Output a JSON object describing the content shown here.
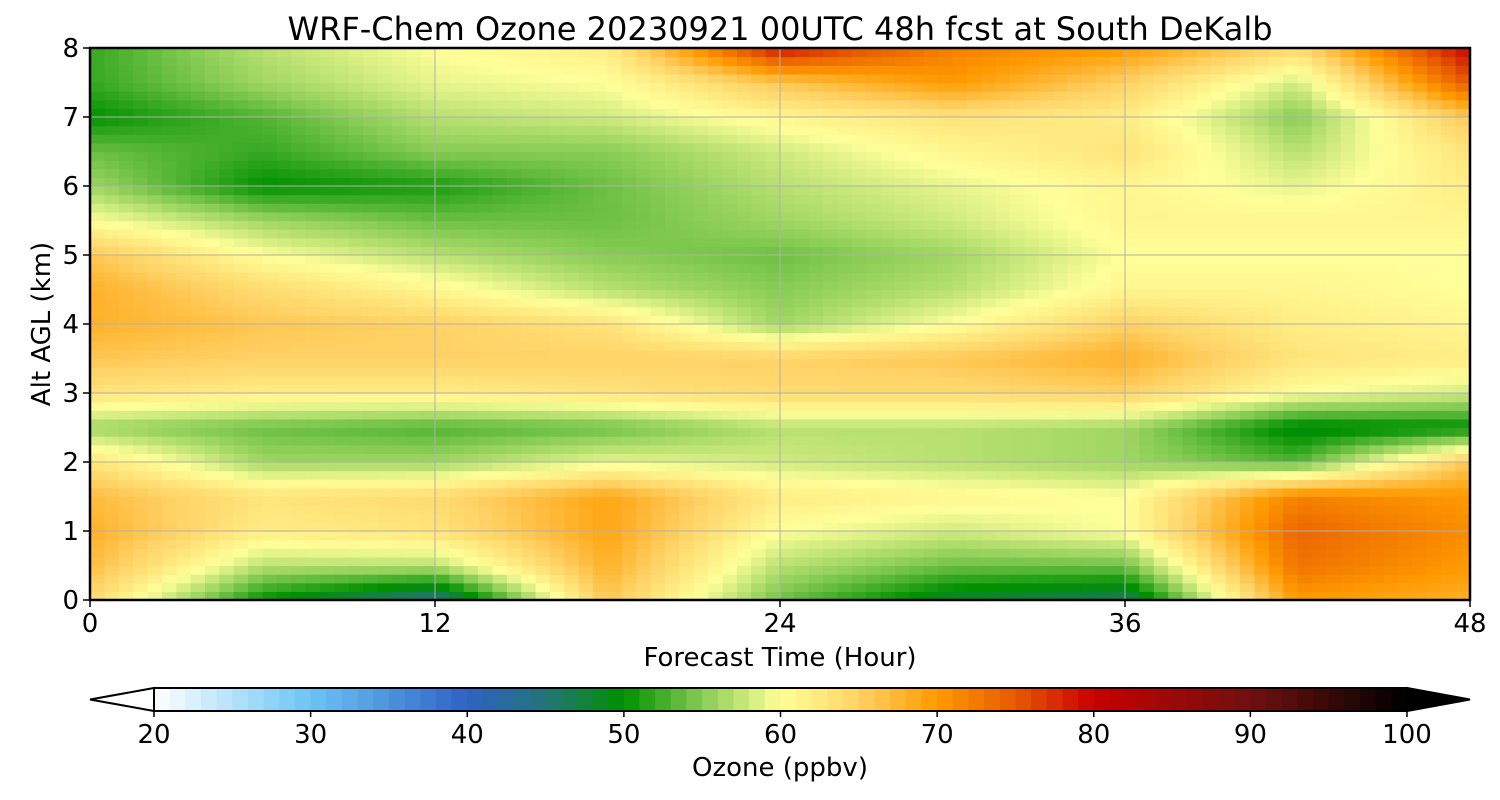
{
  "chart_data": {
    "type": "heatmap",
    "title": "WRF-Chem Ozone  20230921 00UTC 48h fcst at South DeKalb",
    "xlabel": "Forecast Time (Hour)",
    "ylabel": "Alt AGL (km)",
    "xlim": [
      0,
      48
    ],
    "ylim": [
      0,
      8
    ],
    "x_ticks": [
      0,
      12,
      24,
      36,
      48
    ],
    "y_ticks": [
      0,
      1,
      2,
      3,
      4,
      5,
      6,
      7,
      8
    ],
    "grid": true,
    "x": [
      0,
      6,
      12,
      18,
      24,
      30,
      36,
      42,
      48
    ],
    "y": [
      0,
      0.5,
      1,
      1.5,
      2,
      2.5,
      3,
      3.5,
      4,
      4.5,
      5,
      5.5,
      6,
      6.5,
      7,
      7.5,
      8
    ],
    "z": [
      [
        64,
        50,
        44,
        66,
        54,
        48,
        46,
        70,
        68
      ],
      [
        67,
        57,
        57,
        68,
        57,
        54,
        54,
        73,
        70
      ],
      [
        68,
        62,
        63,
        69,
        60,
        58,
        60,
        74,
        71
      ],
      [
        67,
        63,
        64,
        69,
        62,
        61,
        60,
        72,
        70
      ],
      [
        63,
        56,
        56,
        59,
        58,
        57,
        56,
        53,
        66
      ],
      [
        56,
        54,
        53,
        54,
        57,
        57,
        56,
        49,
        50
      ],
      [
        63,
        62,
        62,
        63,
        64,
        64,
        65,
        60,
        58
      ],
      [
        66,
        65,
        65,
        65,
        65,
        66,
        68,
        63,
        62
      ],
      [
        68,
        66,
        65,
        63,
        56,
        60,
        65,
        62,
        61
      ],
      [
        68,
        64,
        61,
        57,
        55,
        57,
        61,
        61,
        60
      ],
      [
        66,
        60,
        57,
        55,
        54,
        56,
        60,
        60,
        60
      ],
      [
        60,
        56,
        54,
        54,
        56,
        58,
        61,
        61,
        61
      ],
      [
        56,
        50,
        51,
        54,
        57,
        59,
        61,
        59,
        62
      ],
      [
        54,
        52,
        55,
        55,
        58,
        61,
        63,
        57,
        63
      ],
      [
        50,
        53,
        57,
        58,
        61,
        63,
        62,
        55,
        66
      ],
      [
        52,
        56,
        59,
        60,
        66,
        70,
        65,
        58,
        75
      ],
      [
        52,
        57,
        60,
        62,
        79,
        72,
        70,
        64,
        80
      ]
    ],
    "colorbar": {
      "label": "Ozone  (ppbv)",
      "min": 20,
      "max": 100,
      "ticks": [
        20,
        30,
        40,
        50,
        60,
        70,
        80,
        90,
        100
      ],
      "extend": "both",
      "colormap_stops": [
        {
          "value": 20,
          "color": "#ffffff"
        },
        {
          "value": 30,
          "color": "#6cc4f4"
        },
        {
          "value": 40,
          "color": "#2f62c4"
        },
        {
          "value": 45,
          "color": "#237478"
        },
        {
          "value": 50,
          "color": "#009000"
        },
        {
          "value": 55,
          "color": "#88cc55"
        },
        {
          "value": 60,
          "color": "#ffff99"
        },
        {
          "value": 65,
          "color": "#ffd266"
        },
        {
          "value": 70,
          "color": "#ff9a00"
        },
        {
          "value": 75,
          "color": "#e65a00"
        },
        {
          "value": 80,
          "color": "#c80000"
        },
        {
          "value": 90,
          "color": "#701010"
        },
        {
          "value": 100,
          "color": "#000000"
        }
      ]
    }
  }
}
